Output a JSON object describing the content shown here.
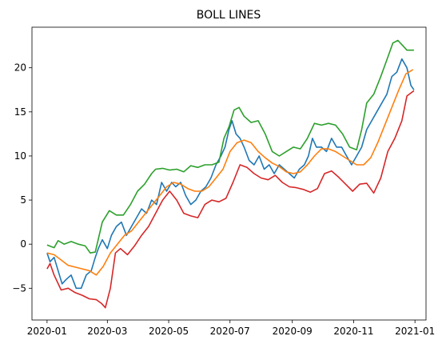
{
  "chart_data": {
    "type": "line",
    "title": "BOLL LINES",
    "xlabel": "",
    "ylabel": "",
    "xlim": [
      "2019-12-17",
      "2021-01-12"
    ],
    "ylim": [
      -8.6,
      24.6
    ],
    "xticks": [
      "2020-01",
      "2020-03",
      "2020-05",
      "2020-07",
      "2020-09",
      "2020-11",
      "2021-01"
    ],
    "yticks": [
      -5,
      0,
      5,
      10,
      15,
      20
    ],
    "grid": false,
    "legend": "none",
    "series": [
      {
        "color": "#1f77b4",
        "x": [
          "2020-01-01",
          "2020-01-04",
          "2020-01-08",
          "2020-01-12",
          "2020-01-16",
          "2020-01-20",
          "2020-01-25",
          "2020-01-30",
          "2020-02-04",
          "2020-02-09",
          "2020-02-14",
          "2020-02-18",
          "2020-02-21",
          "2020-02-25",
          "2020-03-01",
          "2020-03-05",
          "2020-03-10",
          "2020-03-15",
          "2020-03-20",
          "2020-03-25",
          "2020-03-30",
          "2020-04-04",
          "2020-04-09",
          "2020-04-14",
          "2020-04-19",
          "2020-04-24",
          "2020-04-29",
          "2020-05-04",
          "2020-05-08",
          "2020-05-13",
          "2020-05-18",
          "2020-05-23",
          "2020-05-28",
          "2020-06-02",
          "2020-06-07",
          "2020-06-12",
          "2020-06-17",
          "2020-06-22",
          "2020-06-26",
          "2020-06-30",
          "2020-07-03",
          "2020-07-07",
          "2020-07-11",
          "2020-07-15",
          "2020-07-20",
          "2020-07-25",
          "2020-07-30",
          "2020-08-04",
          "2020-08-09",
          "2020-08-14",
          "2020-08-19",
          "2020-08-24",
          "2020-08-29",
          "2020-09-03",
          "2020-09-08",
          "2020-09-13",
          "2020-09-17",
          "2020-09-21",
          "2020-09-25",
          "2020-09-30",
          "2020-10-05",
          "2020-10-10",
          "2020-10-15",
          "2020-10-20",
          "2020-10-25",
          "2020-10-30",
          "2020-11-04",
          "2020-11-09",
          "2020-11-14",
          "2020-11-19",
          "2020-11-24",
          "2020-11-29",
          "2020-12-04",
          "2020-12-09",
          "2020-12-14",
          "2020-12-19",
          "2020-12-24",
          "2020-12-28",
          "2020-12-31"
        ],
        "values": [
          -1,
          -2,
          -1.5,
          -3,
          -4.5,
          -4,
          -3.5,
          -5,
          -5,
          -3.5,
          -3,
          -1.5,
          -0.5,
          0.5,
          -0.5,
          1,
          2,
          2.5,
          1,
          2,
          3,
          4,
          3.5,
          5,
          4.5,
          7,
          6,
          7,
          6.5,
          7,
          5.5,
          4.5,
          5,
          6,
          6.5,
          7.5,
          9,
          10,
          11,
          13,
          14,
          12.5,
          12,
          11,
          9.5,
          9,
          10,
          8.5,
          9,
          8,
          9,
          8.5,
          8,
          7.5,
          8.5,
          9,
          10,
          12,
          11,
          11,
          10.5,
          12,
          11,
          11,
          10,
          9,
          10,
          11,
          13,
          14,
          15,
          16,
          17,
          19,
          19.5,
          21,
          20,
          18,
          17.5
        ]
      },
      {
        "color": "#ff7f0e",
        "x": [
          "2020-01-01",
          "2020-01-08",
          "2020-01-15",
          "2020-01-22",
          "2020-01-29",
          "2020-02-05",
          "2020-02-12",
          "2020-02-19",
          "2020-02-26",
          "2020-03-04",
          "2020-03-11",
          "2020-03-18",
          "2020-03-25",
          "2020-04-01",
          "2020-04-08",
          "2020-04-15",
          "2020-04-22",
          "2020-04-29",
          "2020-05-06",
          "2020-05-13",
          "2020-05-20",
          "2020-05-27",
          "2020-06-03",
          "2020-06-10",
          "2020-06-17",
          "2020-06-24",
          "2020-07-01",
          "2020-07-08",
          "2020-07-15",
          "2020-07-22",
          "2020-07-29",
          "2020-08-05",
          "2020-08-12",
          "2020-08-19",
          "2020-08-26",
          "2020-09-02",
          "2020-09-09",
          "2020-09-16",
          "2020-09-23",
          "2020-09-30",
          "2020-10-07",
          "2020-10-14",
          "2020-10-21",
          "2020-10-28",
          "2020-11-04",
          "2020-11-11",
          "2020-11-18",
          "2020-11-25",
          "2020-12-02",
          "2020-12-09",
          "2020-12-16",
          "2020-12-23",
          "2020-12-30"
        ],
        "values": [
          -1.0,
          -1.2,
          -1.8,
          -2.4,
          -2.6,
          -2.8,
          -3.0,
          -3.5,
          -2.5,
          -1.0,
          0.0,
          1.0,
          1.5,
          2.5,
          3.5,
          4.5,
          5.5,
          6.5,
          7.0,
          6.8,
          6.3,
          6.0,
          6.0,
          6.5,
          7.5,
          8.5,
          10.5,
          11.5,
          11.8,
          11.5,
          10.5,
          9.8,
          9.2,
          8.8,
          8.2,
          8.0,
          8.2,
          9.0,
          10.0,
          10.8,
          10.8,
          10.5,
          10.0,
          9.5,
          9.0,
          9.0,
          9.8,
          11.5,
          13.5,
          15.5,
          17.5,
          19.3,
          19.8
        ]
      },
      {
        "color": "#2ca02c",
        "x": [
          "2020-01-01",
          "2020-01-08",
          "2020-01-12",
          "2020-01-18",
          "2020-01-25",
          "2020-02-01",
          "2020-02-08",
          "2020-02-13",
          "2020-02-18",
          "2020-02-25",
          "2020-03-03",
          "2020-03-10",
          "2020-03-17",
          "2020-03-24",
          "2020-03-31",
          "2020-04-07",
          "2020-04-14",
          "2020-04-18",
          "2020-04-25",
          "2020-05-02",
          "2020-05-09",
          "2020-05-16",
          "2020-05-23",
          "2020-05-30",
          "2020-06-06",
          "2020-06-13",
          "2020-06-20",
          "2020-06-25",
          "2020-06-30",
          "2020-07-05",
          "2020-07-10",
          "2020-07-15",
          "2020-07-22",
          "2020-07-29",
          "2020-08-05",
          "2020-08-12",
          "2020-08-19",
          "2020-08-26",
          "2020-09-02",
          "2020-09-09",
          "2020-09-16",
          "2020-09-23",
          "2020-09-30",
          "2020-10-07",
          "2020-10-14",
          "2020-10-21",
          "2020-10-28",
          "2020-11-04",
          "2020-11-09",
          "2020-11-14",
          "2020-11-21",
          "2020-11-28",
          "2020-12-05",
          "2020-12-10",
          "2020-12-15",
          "2020-12-20",
          "2020-12-24",
          "2020-12-31"
        ],
        "values": [
          -0.1,
          -0.4,
          0.4,
          0.0,
          0.3,
          0.0,
          -0.2,
          -1.0,
          -0.9,
          2.5,
          3.8,
          3.3,
          3.3,
          4.5,
          6.0,
          6.8,
          8.0,
          8.5,
          8.6,
          8.4,
          8.5,
          8.2,
          8.9,
          8.7,
          9.0,
          9.0,
          9.3,
          12.0,
          13.3,
          15.2,
          15.5,
          14.5,
          13.8,
          14.0,
          12.5,
          10.5,
          10.0,
          10.5,
          11.0,
          10.8,
          12.0,
          13.7,
          13.5,
          13.7,
          13.5,
          12.5,
          11.0,
          10.7,
          13.0,
          16.0,
          17.0,
          19.0,
          21.2,
          22.8,
          23.1,
          22.5,
          22.0,
          22.0
        ]
      },
      {
        "color": "#d62728",
        "x": [
          "2020-01-01",
          "2020-01-04",
          "2020-01-08",
          "2020-01-15",
          "2020-01-22",
          "2020-01-29",
          "2020-02-05",
          "2020-02-12",
          "2020-02-19",
          "2020-02-24",
          "2020-02-28",
          "2020-03-04",
          "2020-03-09",
          "2020-03-14",
          "2020-03-21",
          "2020-03-28",
          "2020-04-04",
          "2020-04-11",
          "2020-04-18",
          "2020-04-25",
          "2020-05-02",
          "2020-05-09",
          "2020-05-16",
          "2020-05-23",
          "2020-05-30",
          "2020-06-06",
          "2020-06-13",
          "2020-06-20",
          "2020-06-27",
          "2020-07-04",
          "2020-07-11",
          "2020-07-18",
          "2020-07-25",
          "2020-08-01",
          "2020-08-08",
          "2020-08-15",
          "2020-08-22",
          "2020-08-29",
          "2020-09-05",
          "2020-09-12",
          "2020-09-19",
          "2020-09-26",
          "2020-10-03",
          "2020-10-10",
          "2020-10-17",
          "2020-10-24",
          "2020-10-31",
          "2020-11-07",
          "2020-11-14",
          "2020-11-21",
          "2020-11-28",
          "2020-12-05",
          "2020-12-12",
          "2020-12-19",
          "2020-12-24",
          "2020-12-31"
        ],
        "values": [
          -2.8,
          -2.2,
          -3.5,
          -5.2,
          -5.0,
          -5.5,
          -5.8,
          -6.2,
          -6.3,
          -6.7,
          -7.2,
          -5.0,
          -1.0,
          -0.5,
          -1.2,
          -0.2,
          1.0,
          2.0,
          3.5,
          5.0,
          6.0,
          5.0,
          3.5,
          3.2,
          3.0,
          4.5,
          5.0,
          4.8,
          5.2,
          7.0,
          9.0,
          8.7,
          8.0,
          7.5,
          7.3,
          7.8,
          7.0,
          6.5,
          6.4,
          6.2,
          5.9,
          6.3,
          8.0,
          8.3,
          7.6,
          6.8,
          6.0,
          6.8,
          6.9,
          5.8,
          7.5,
          10.5,
          12.0,
          14.0,
          16.8,
          17.4
        ]
      }
    ]
  }
}
